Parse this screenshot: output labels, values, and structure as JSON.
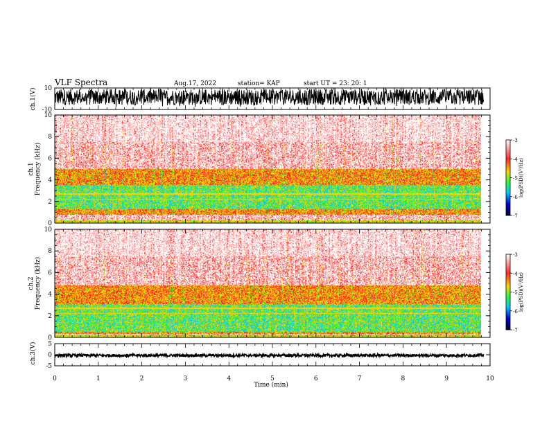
{
  "header": {
    "title": "VLF Spectra",
    "date": "Aug.17, 2022",
    "station": "station= KAP",
    "start": "start  UT  =   23: 20: 1"
  },
  "colors": {
    "spectrum": [
      "#ffffff",
      "#ff9a9a",
      "#ff2a2a",
      "#ffd400",
      "#33ff33",
      "#00c8ff",
      "#0000cc",
      "#000033"
    ],
    "trace": "#000000"
  },
  "chart_data": [
    {
      "type": "line",
      "name": "ch1-waveform",
      "ylabel": "ch.1(V)",
      "ylim": [
        -10,
        10
      ],
      "y_ticklabels": [
        "-10",
        "10"
      ],
      "xlim": [
        0,
        10
      ],
      "x_extent": [
        0,
        9.85
      ],
      "envelope": [
        -6,
        9
      ]
    },
    {
      "type": "heatmap",
      "name": "ch1-spectrogram",
      "ylabel": "ch.1\nFrequency  (kHz)",
      "ylim": [
        0,
        10
      ],
      "y_ticks": [
        0,
        2,
        4,
        6,
        8,
        10
      ],
      "y_ticklabels": [
        "0",
        "2",
        "4",
        "6",
        "8",
        "10"
      ],
      "xlim": [
        0,
        10
      ],
      "x_extent": [
        0,
        9.85
      ],
      "green_band_khz": [
        1.3,
        3.5
      ],
      "red_band_khz": [
        0.8,
        5.0
      ],
      "colorbar": {
        "label": "log(PSD)(V²/Hz)",
        "range": [
          -7,
          -3
        ],
        "ticks": [
          -3,
          -4,
          -5,
          -6,
          -7
        ],
        "ticklabels": [
          "-3",
          "-4",
          "-5",
          "-6",
          "-7"
        ]
      }
    },
    {
      "type": "heatmap",
      "name": "ch2-spectrogram",
      "ylabel": "ch.2\nFrequency  (kHz)",
      "ylim": [
        0,
        10
      ],
      "y_ticks": [
        0,
        2,
        4,
        6,
        8,
        10
      ],
      "y_ticklabels": [
        "0",
        "2",
        "4",
        "6",
        "8",
        "10"
      ],
      "xlim": [
        0,
        10
      ],
      "x_extent": [
        0,
        9.85
      ],
      "green_band_khz": [
        0.5,
        3.1
      ],
      "red_band_khz": [
        0.3,
        4.8
      ],
      "colorbar": {
        "label": "log(PSD)(V²/Hz)",
        "range": [
          -7,
          -3
        ],
        "ticks": [
          -3,
          -4,
          -5,
          -6,
          -7
        ],
        "ticklabels": [
          "-3",
          "-4",
          "-5",
          "-6",
          "-7"
        ]
      }
    },
    {
      "type": "line",
      "name": "ch3-waveform",
      "ylabel": "ch.3(V)",
      "ylim": [
        -5,
        5
      ],
      "y_ticks": [
        -5,
        0,
        5
      ],
      "y_ticklabels": [
        "-5",
        "0",
        "5"
      ],
      "xlim": [
        0,
        10
      ],
      "x_extent": [
        0,
        9.85
      ],
      "envelope": [
        -0.9,
        0.3
      ]
    }
  ],
  "xaxis": {
    "label": "Time  (min)",
    "ticks": [
      0,
      1,
      2,
      3,
      4,
      5,
      6,
      7,
      8,
      9,
      10
    ],
    "ticklabels": [
      "0",
      "1",
      "2",
      "3",
      "4",
      "5",
      "6",
      "7",
      "8",
      "9",
      "10"
    ]
  }
}
